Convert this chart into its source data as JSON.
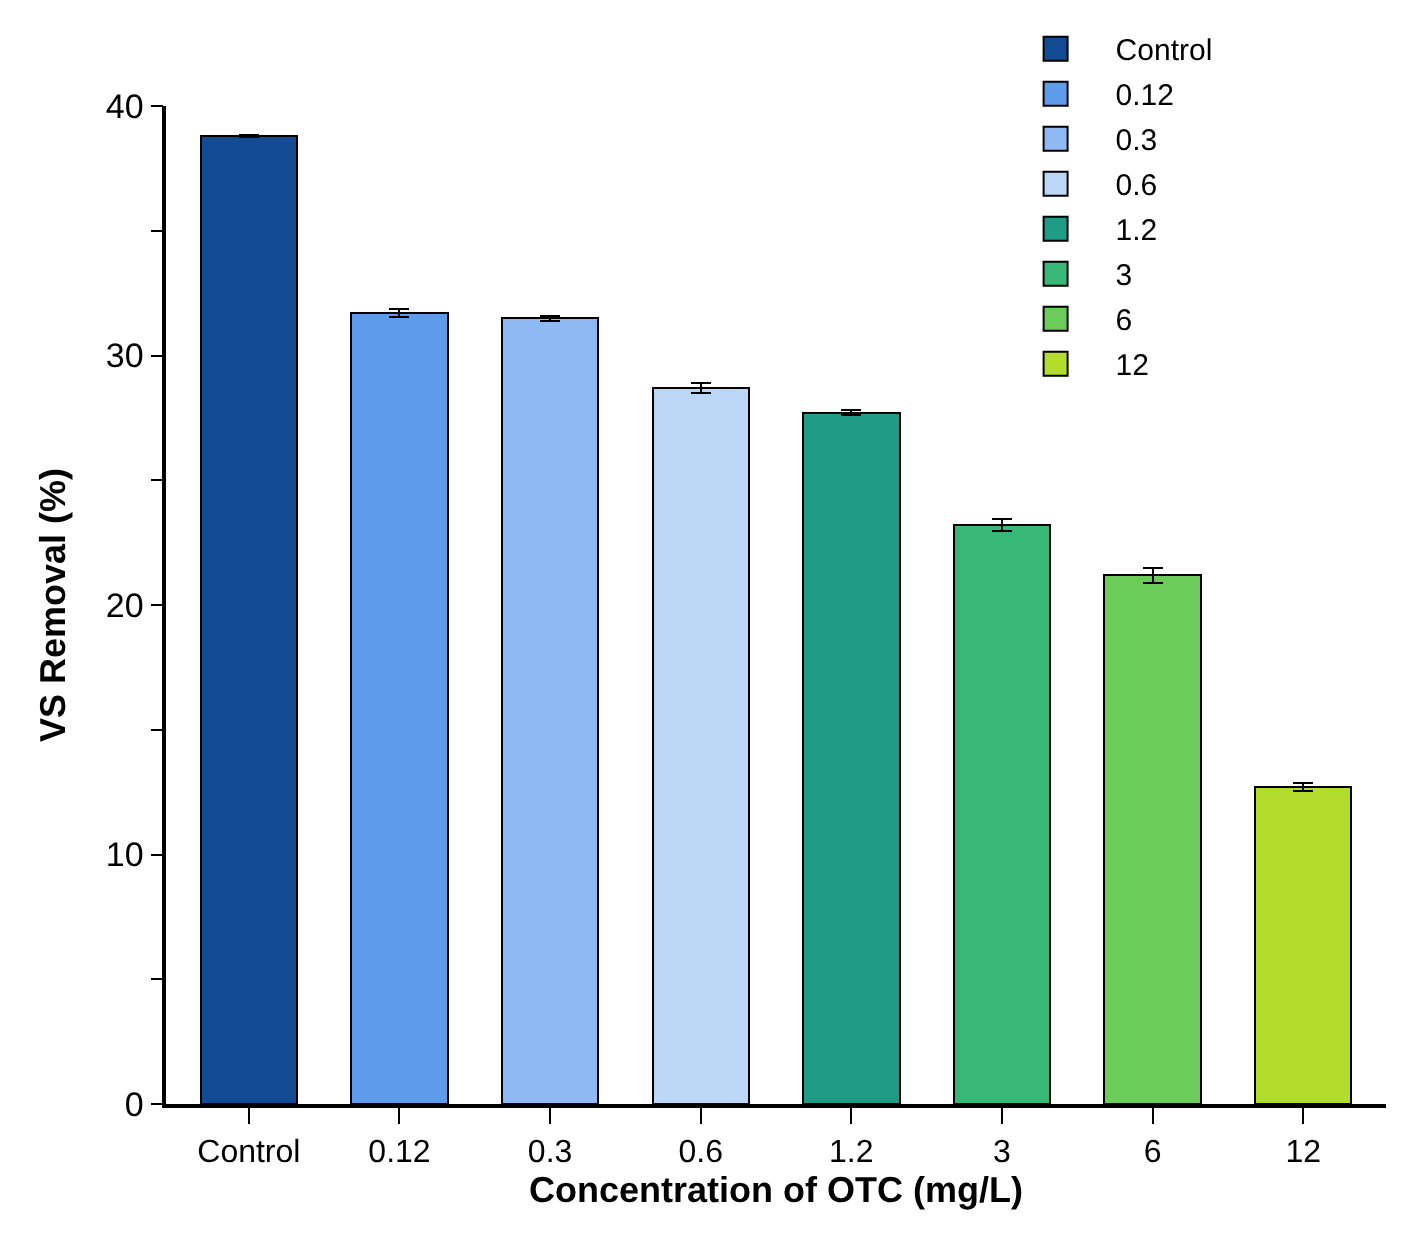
{
  "chart_data": {
    "type": "bar",
    "xlabel": "Concentration of OTC (mg/L)",
    "ylabel": "VS Removal (%)",
    "categories": [
      "Control",
      "0.12",
      "0.3",
      "0.6",
      "1.2",
      "3",
      "6",
      "12"
    ],
    "series": [
      {
        "name": "Control",
        "color": "#124a94",
        "values": [
          38.8,
          null,
          null,
          null,
          null,
          null,
          null,
          null
        ],
        "errors": [
          0.05,
          null,
          null,
          null,
          null,
          null,
          null,
          null
        ]
      },
      {
        "name": "0.12",
        "color": "#5e9beb",
        "values": [
          null,
          31.7,
          null,
          null,
          null,
          null,
          null,
          null
        ],
        "errors": [
          null,
          0.15,
          null,
          null,
          null,
          null,
          null,
          null
        ]
      },
      {
        "name": "0.3",
        "color": "#8fb9f2",
        "values": [
          null,
          null,
          31.5,
          null,
          null,
          null,
          null,
          null
        ],
        "errors": [
          null,
          null,
          0.1,
          null,
          null,
          null,
          null,
          null
        ]
      },
      {
        "name": "0.6",
        "color": "#bcd6f5",
        "values": [
          null,
          null,
          null,
          28.7,
          null,
          null,
          null,
          null
        ],
        "errors": [
          null,
          null,
          null,
          0.2,
          null,
          null,
          null,
          null
        ]
      },
      {
        "name": "1.2",
        "color": "#1f9b86",
        "values": [
          null,
          null,
          null,
          null,
          27.7,
          null,
          null,
          null
        ],
        "errors": [
          null,
          null,
          null,
          null,
          0.1,
          null,
          null,
          null
        ]
      },
      {
        "name": "3",
        "color": "#37b877",
        "values": [
          null,
          null,
          null,
          null,
          null,
          23.2,
          null,
          null
        ],
        "errors": [
          null,
          null,
          null,
          null,
          null,
          0.25,
          null,
          null
        ]
      },
      {
        "name": "6",
        "color": "#6bcc5a",
        "values": [
          null,
          null,
          null,
          null,
          null,
          null,
          21.2,
          null
        ],
        "errors": [
          null,
          null,
          null,
          null,
          null,
          null,
          0.3,
          null
        ]
      },
      {
        "name": "12",
        "color": "#b3dd2c",
        "values": [
          null,
          null,
          null,
          null,
          null,
          null,
          null,
          12.7
        ],
        "errors": [
          null,
          null,
          null,
          null,
          null,
          null,
          null,
          0.15
        ]
      }
    ],
    "stacked": true,
    "ylim": [
      0,
      40
    ],
    "yticks": [
      0,
      {
        "value": 5,
        "label": null
      },
      10,
      {
        "value": 15,
        "label": null
      },
      20,
      {
        "value": 25,
        "label": null
      },
      30,
      {
        "value": 35,
        "label": null
      },
      40
    ],
    "legend": "top right"
  }
}
